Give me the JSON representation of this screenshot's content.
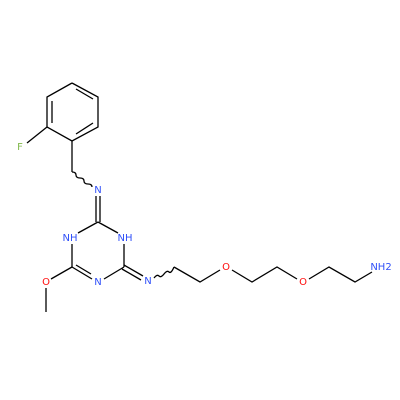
{
  "atoms": [
    {
      "label": "F"
    },
    {
      "label": "N"
    },
    {
      "label": "NH"
    },
    {
      "label": "NH"
    },
    {
      "label": "N"
    },
    {
      "label": "O"
    },
    {
      "label": "N"
    },
    {
      "label": "O"
    },
    {
      "label": "O"
    },
    {
      "label": "NH2"
    }
  ]
}
